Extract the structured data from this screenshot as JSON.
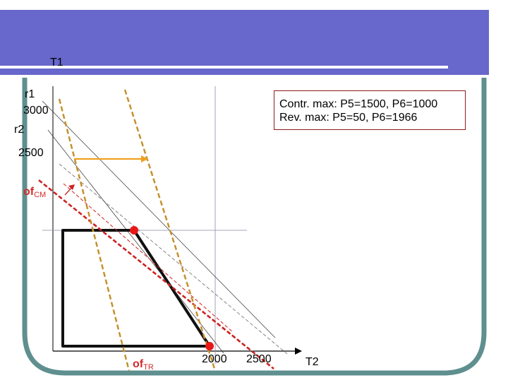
{
  "axes": {
    "y_label": "T1",
    "x_label": "T2"
  },
  "y_ticks": {
    "t3000": "3000",
    "t2500": "2500"
  },
  "x_ticks": {
    "t2000": "2000",
    "t2500": "2500"
  },
  "lines": {
    "r1": "r1",
    "r2": "r2"
  },
  "objectives": {
    "of_cm_main": "of",
    "of_cm_sub": "CM",
    "of_tr_main": "of",
    "of_tr_sub": "TR"
  },
  "info": {
    "contr": "Contr. max: P5=1500, P6=1000",
    "rev": "Rev. max: P5=50, P6=1966"
  },
  "colors": {
    "header": "#6767cc",
    "frame": "#5f8f8f",
    "objective_cm": "#cc2222",
    "objective_tr": "#e0a020",
    "arrow_orange": "#f0a020",
    "optimum_point": "#e81818"
  }
}
